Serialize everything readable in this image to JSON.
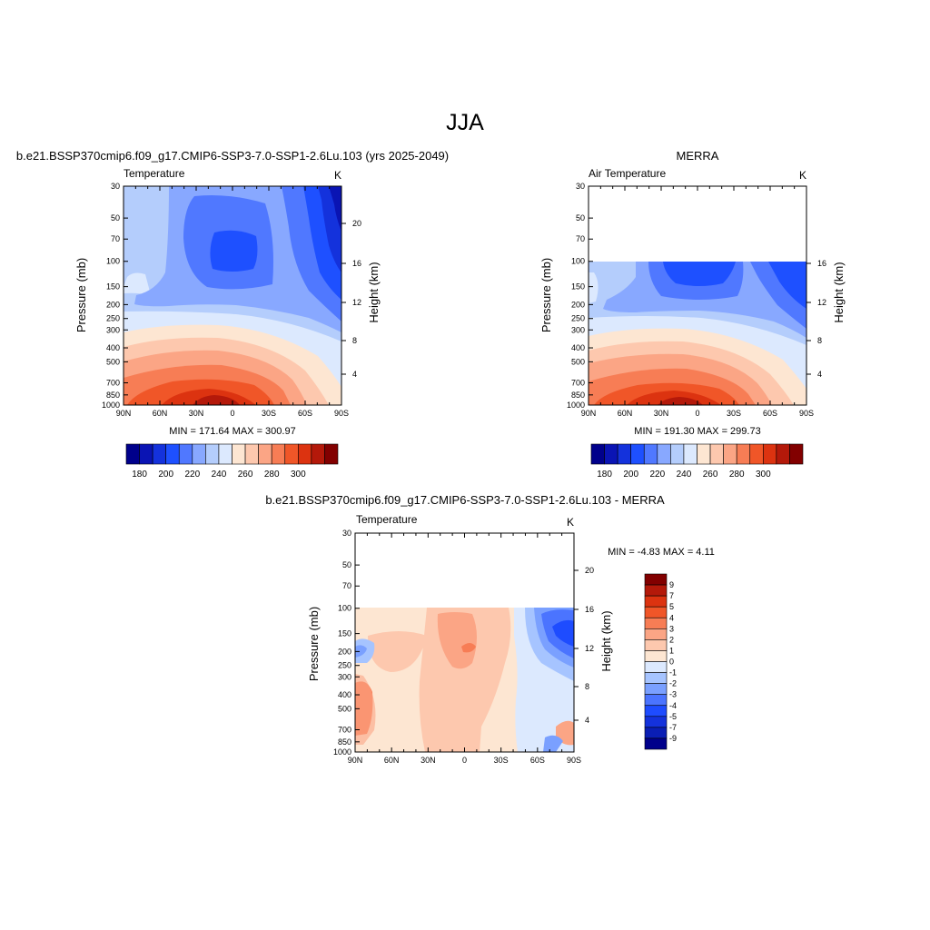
{
  "page_title": "JJA",
  "palette_abs": [
    "#00008b",
    "#0a14b4",
    "#1432dc",
    "#1e50ff",
    "#5078ff",
    "#88a8ff",
    "#b4cdfc",
    "#dce9fe",
    "#fde6d2",
    "#fdc8ae",
    "#fba585",
    "#f77d55",
    "#f05628",
    "#dc3310",
    "#b4190a",
    "#820000"
  ],
  "palette_diff": [
    "#00008b",
    "#0a1eb4",
    "#1432dc",
    "#1e4cff",
    "#4b74ff",
    "#7aa0ff",
    "#a6c4ff",
    "#dce9fe",
    "#fde6d2",
    "#fdc8ae",
    "#fba585",
    "#f77d55",
    "#f05628",
    "#dc3310",
    "#b4190a",
    "#820000"
  ],
  "chart_data": [
    {
      "type": "heatmap",
      "panel_title": "b.e21.BSSP370cmip6.f09_g17.CMIP6-SSP3-7.0-SSP1-2.6Lu.103 (yrs 2025-2049)",
      "title": "Temperature",
      "units": "K",
      "ylabel": "Pressure (mb)",
      "ylabel_right": "Height (km)",
      "x_ticks": [
        "90N",
        "60N",
        "30N",
        "0",
        "30S",
        "60S",
        "90S"
      ],
      "y_ticks": [
        "30",
        "50",
        "70",
        "100",
        "150",
        "200",
        "250",
        "300",
        "400",
        "500",
        "700",
        "850",
        "1000"
      ],
      "right_ticks": [
        "20",
        "16",
        "12",
        "8",
        "4"
      ],
      "ylim": [
        1000,
        30
      ],
      "y_scale": "log",
      "data_top_mb": 30,
      "stats": "MIN = 171.64  MAX = 300.97",
      "min": 171.64,
      "max": 300.97,
      "colorbar_labels": [
        "180",
        "190",
        "200",
        "210",
        "220",
        "230",
        "240",
        "250",
        "260",
        "270",
        "280",
        "290",
        "300"
      ],
      "levels": [
        175,
        180,
        185,
        190,
        195,
        200,
        205,
        210,
        220,
        230,
        240,
        250,
        260,
        270,
        280,
        290,
        300
      ]
    },
    {
      "type": "heatmap",
      "panel_title": "MERRA",
      "title": "Air Temperature",
      "units": "K",
      "ylabel": "Pressure (mb)",
      "ylabel_right": "Height (km)",
      "x_ticks": [
        "90N",
        "60N",
        "30N",
        "0",
        "30S",
        "60S",
        "90S"
      ],
      "y_ticks": [
        "30",
        "50",
        "70",
        "100",
        "150",
        "200",
        "250",
        "300",
        "400",
        "500",
        "700",
        "850",
        "1000"
      ],
      "right_ticks": [
        "16",
        "12",
        "8",
        "4"
      ],
      "ylim": [
        1000,
        30
      ],
      "y_scale": "log",
      "data_top_mb": 100,
      "stats": "MIN = 191.30  MAX = 299.73",
      "min": 191.3,
      "max": 299.73,
      "colorbar_labels": [
        "180",
        "190",
        "200",
        "210",
        "220",
        "230",
        "240",
        "250",
        "260",
        "270",
        "280",
        "290",
        "300"
      ],
      "levels": [
        175,
        180,
        185,
        190,
        195,
        200,
        205,
        210,
        220,
        230,
        240,
        250,
        260,
        270,
        280,
        290,
        300
      ]
    },
    {
      "type": "heatmap",
      "panel_title": "b.e21.BSSP370cmip6.f09_g17.CMIP6-SSP3-7.0-SSP1-2.6Lu.103 - MERRA",
      "title": "Temperature",
      "units": "K",
      "ylabel": "Pressure (mb)",
      "ylabel_right": "Height (km)",
      "x_ticks": [
        "90N",
        "60N",
        "30N",
        "0",
        "30S",
        "60S",
        "90S"
      ],
      "y_ticks": [
        "30",
        "50",
        "70",
        "100",
        "150",
        "200",
        "250",
        "300",
        "400",
        "500",
        "700",
        "850",
        "1000"
      ],
      "right_ticks": [
        "20",
        "16",
        "12",
        "8",
        "4"
      ],
      "ylim": [
        1000,
        30
      ],
      "y_scale": "log",
      "data_top_mb": 100,
      "stats": "MIN =  -4.83  MAX =   4.11",
      "min": -4.83,
      "max": 4.11,
      "colorbar_labels": [
        "9",
        "7",
        "5",
        "4",
        "3",
        "2",
        "1",
        "0",
        "-1",
        "-2",
        "-3",
        "-4",
        "-5",
        "-7",
        "-9"
      ],
      "levels": [
        -9,
        -7,
        -5,
        -4,
        -3,
        -2,
        -1,
        0,
        1,
        2,
        3,
        4,
        5,
        7,
        9
      ]
    }
  ]
}
